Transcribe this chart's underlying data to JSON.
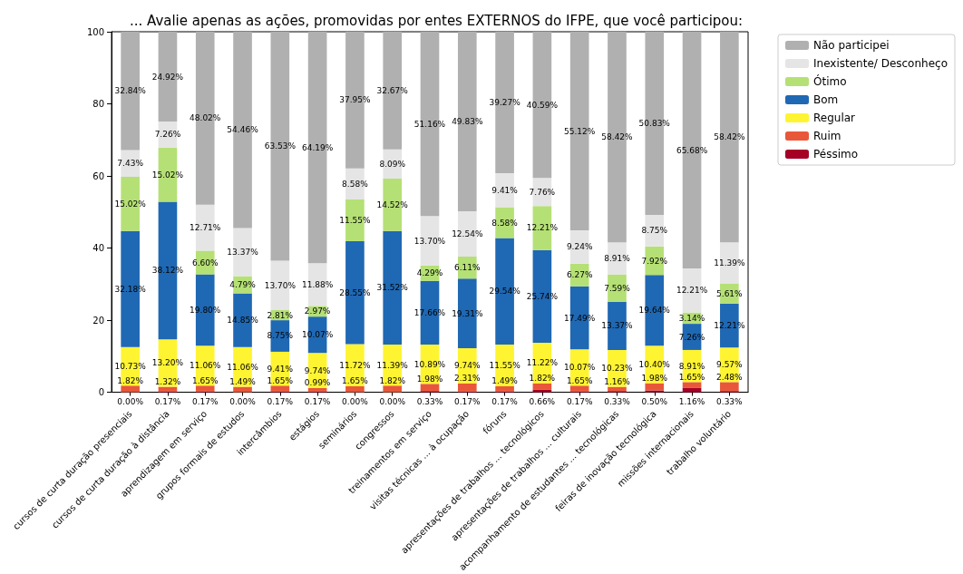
{
  "chart_data": {
    "type": "bar",
    "stacked": true,
    "title": "... Avalie apenas as ações, promovidas por entes EXTERNOS do IFPE, que você participou:",
    "categories": [
      "cursos de curta duração presenciais",
      "cursos de curta duração à distância",
      "aprendizagem em serviço",
      "grupos formais de estudos",
      "intercâmbios",
      "estágios",
      "seminários",
      "congressos",
      "treinamentos em serviço",
      "visitas técnicas ... à ocupação",
      "fóruns",
      "apresentações de trabalhos ... tecnológicos",
      "apresentações de trabalhos ... culturais",
      "acompanhamento de estudantes ... tecnológicas",
      "feiras de inovação tecnológica",
      "missões internacionais",
      "trabalho voluntário"
    ],
    "series": [
      {
        "name": "Péssimo",
        "color": "#a50026",
        "values": [
          0.0,
          0.17,
          0.17,
          0.0,
          0.17,
          0.17,
          0.0,
          0.0,
          0.33,
          0.17,
          0.17,
          0.66,
          0.17,
          0.33,
          0.5,
          1.16,
          0.33
        ],
        "value_labels": [
          "0.00%",
          "0.17%",
          "0.17%",
          "0.00%",
          "0.17%",
          "0.17%",
          "0.00%",
          "0.00%",
          "0.33%",
          "0.17%",
          "0.17%",
          "0.66%",
          "0.17%",
          "0.33%",
          "0.50%",
          "1.16%",
          "0.33%"
        ]
      },
      {
        "name": "Ruim",
        "color": "#e9573a",
        "values": [
          1.82,
          1.32,
          1.65,
          1.49,
          1.65,
          0.99,
          1.65,
          1.82,
          1.98,
          2.31,
          1.49,
          1.82,
          1.65,
          1.16,
          1.98,
          1.65,
          2.48
        ],
        "value_labels": [
          "1.82%",
          "1.32%",
          "1.65%",
          "1.49%",
          "1.65%",
          "0.99%",
          "1.65%",
          "1.82%",
          "1.98%",
          "2.31%",
          "1.49%",
          "1.82%",
          "1.65%",
          "1.16%",
          "1.98%",
          "1.65%",
          "2.48%"
        ]
      },
      {
        "name": "Regular",
        "color": "#fef432",
        "values": [
          10.73,
          13.2,
          11.06,
          11.06,
          9.41,
          9.74,
          11.72,
          11.39,
          10.89,
          9.74,
          11.55,
          11.22,
          10.07,
          10.23,
          10.4,
          8.91,
          9.57
        ],
        "value_labels": [
          "10.73%",
          "13.20%",
          "11.06%",
          "11.06%",
          "9.41%",
          "9.74%",
          "11.72%",
          "11.39%",
          "10.89%",
          "9.74%",
          "11.55%",
          "11.22%",
          "10.07%",
          "10.23%",
          "10.40%",
          "8.91%",
          "9.57%"
        ]
      },
      {
        "name": "Bom",
        "color": "#1f68b3",
        "values": [
          32.18,
          38.12,
          19.8,
          14.85,
          8.75,
          10.07,
          28.55,
          31.52,
          17.66,
          19.31,
          29.54,
          25.74,
          17.49,
          13.37,
          19.64,
          7.26,
          12.21
        ],
        "value_labels": [
          "32.18%",
          "38.12%",
          "19.80%",
          "14.85%",
          "8.75%",
          "10.07%",
          "28.55%",
          "31.52%",
          "17.66%",
          "19.31%",
          "29.54%",
          "25.74%",
          "17.49%",
          "13.37%",
          "19.64%",
          "7.26%",
          "12.21%"
        ]
      },
      {
        "name": "Ótimo",
        "color": "#b5e075",
        "values": [
          15.02,
          15.02,
          6.6,
          4.79,
          2.81,
          2.97,
          11.55,
          14.52,
          4.29,
          6.11,
          8.58,
          12.21,
          6.27,
          7.59,
          7.92,
          3.14,
          5.61
        ],
        "value_labels": [
          "15.02%",
          "15.02%",
          "6.60%",
          "4.79%",
          "2.81%",
          "2.97%",
          "11.55%",
          "14.52%",
          "4.29%",
          "6.11%",
          "8.58%",
          "12.21%",
          "6.27%",
          "7.59%",
          "7.92%",
          "3.14%",
          "5.61%"
        ]
      },
      {
        "name": "Inexistente/ Desconheço",
        "color": "#e5e5e5",
        "values": [
          7.43,
          7.26,
          12.71,
          13.37,
          13.7,
          11.88,
          8.58,
          8.09,
          13.7,
          12.54,
          9.41,
          7.76,
          9.24,
          8.91,
          8.75,
          12.21,
          11.39
        ],
        "value_labels": [
          "7.43%",
          "7.26%",
          "12.71%",
          "13.37%",
          "13.70%",
          "11.88%",
          "8.58%",
          "8.09%",
          "13.70%",
          "12.54%",
          "9.41%",
          "7.76%",
          "9.24%",
          "8.91%",
          "8.75%",
          "12.21%",
          "11.39%"
        ]
      },
      {
        "name": "Não participei",
        "color": "#b0b0b0",
        "values": [
          32.84,
          24.92,
          48.02,
          54.46,
          63.53,
          64.19,
          37.95,
          32.67,
          51.16,
          49.83,
          39.27,
          40.59,
          55.12,
          58.42,
          50.83,
          65.68,
          58.42
        ],
        "value_labels": [
          "32.84%",
          "24.92%",
          "48.02%",
          "54.46%",
          "63.53%",
          "64.19%",
          "37.95%",
          "32.67%",
          "51.16%",
          "49.83%",
          "39.27%",
          "40.59%",
          "55.12%",
          "58.42%",
          "50.83%",
          "65.68%",
          "58.42%"
        ]
      }
    ],
    "ylim": [
      0,
      100
    ],
    "yticks": [
      0,
      20,
      40,
      60,
      80,
      100
    ],
    "grid": false,
    "legend": "top right"
  }
}
